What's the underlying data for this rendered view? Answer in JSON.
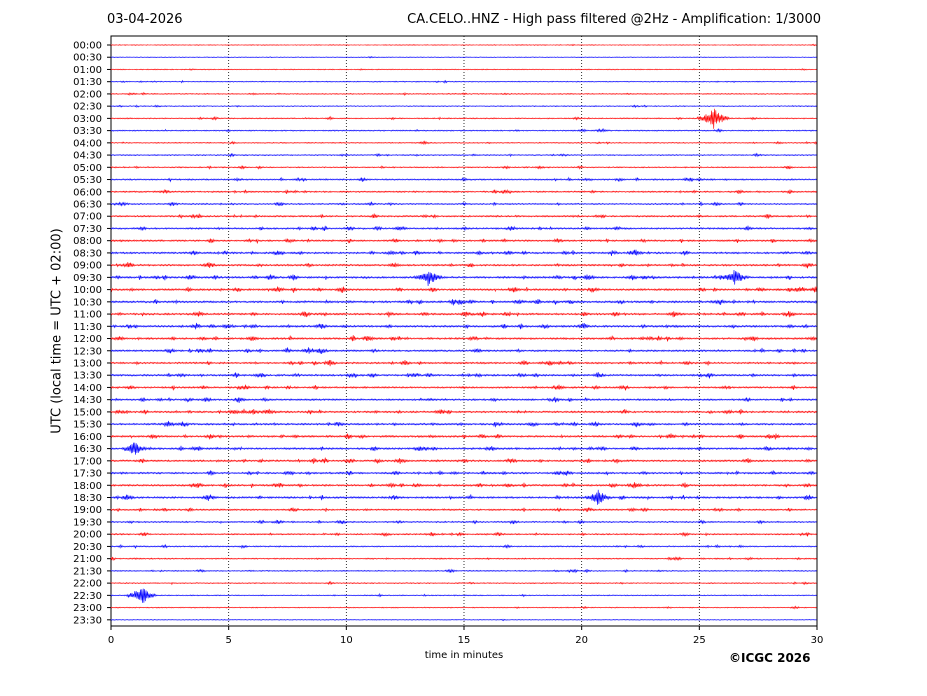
{
  "header": {
    "date": "03-04-2026",
    "title": "CA.CELO..HNZ - High pass filtered @2Hz - Amplification: 1/3000"
  },
  "footer": {
    "copyright": "©ICGC 2026"
  },
  "colors": {
    "red_trace": "#ff0000",
    "blue_trace": "#0000ff",
    "grid": "#000000",
    "background": "#ffffff"
  },
  "chart_data": {
    "type": "line",
    "title": "CA.CELO..HNZ - High pass filtered @2Hz - Amplification: 1/3000",
    "xlabel": "time in minutes",
    "ylabel": "UTC (local time = UTC + 02:00)",
    "xlim": [
      0,
      30
    ],
    "x_ticks": [
      "0",
      "5",
      "10",
      "15",
      "20",
      "25",
      "30"
    ],
    "vertical_gridlines_at": [
      5,
      10,
      15,
      20,
      25
    ],
    "trace_colors_alternate": [
      "red",
      "blue"
    ],
    "rows": [
      "00:00",
      "00:30",
      "01:00",
      "01:30",
      "02:00",
      "02:30",
      "03:00",
      "03:30",
      "04:00",
      "04:30",
      "05:00",
      "05:30",
      "06:00",
      "06:30",
      "07:00",
      "07:30",
      "08:00",
      "08:30",
      "09:00",
      "09:30",
      "10:00",
      "10:30",
      "11:00",
      "11:30",
      "12:00",
      "12:30",
      "13:00",
      "13:30",
      "14:00",
      "14:30",
      "15:00",
      "15:30",
      "16:00",
      "16:30",
      "17:00",
      "17:30",
      "18:00",
      "18:30",
      "19:00",
      "19:30",
      "20:00",
      "20:30",
      "21:00",
      "21:30",
      "22:00",
      "22:30",
      "23:00",
      "23:30"
    ],
    "activity_level": [
      0.05,
      0.05,
      0.1,
      0.2,
      0.25,
      0.2,
      0.3,
      0.3,
      0.25,
      0.3,
      0.35,
      0.55,
      0.5,
      0.5,
      0.6,
      0.65,
      0.7,
      0.75,
      0.75,
      0.85,
      0.85,
      0.85,
      0.8,
      0.85,
      0.8,
      0.75,
      0.7,
      0.75,
      0.7,
      0.7,
      0.75,
      0.75,
      0.8,
      0.8,
      0.75,
      0.75,
      0.75,
      0.8,
      0.6,
      0.5,
      0.45,
      0.4,
      0.35,
      0.3,
      0.25,
      0.2,
      0.15,
      0.05
    ],
    "notable_events": [
      {
        "row": "03:00",
        "minute": 25.6,
        "amplitude": 1.0
      },
      {
        "row": "09:30",
        "minute": 13.5,
        "amplitude": 0.8
      },
      {
        "row": "09:30",
        "minute": 26.5,
        "amplitude": 0.8
      },
      {
        "row": "16:30",
        "minute": 1.0,
        "amplitude": 0.7
      },
      {
        "row": "18:30",
        "minute": 20.7,
        "amplitude": 0.7
      },
      {
        "row": "22:30",
        "minute": 1.3,
        "amplitude": 0.9
      }
    ]
  }
}
